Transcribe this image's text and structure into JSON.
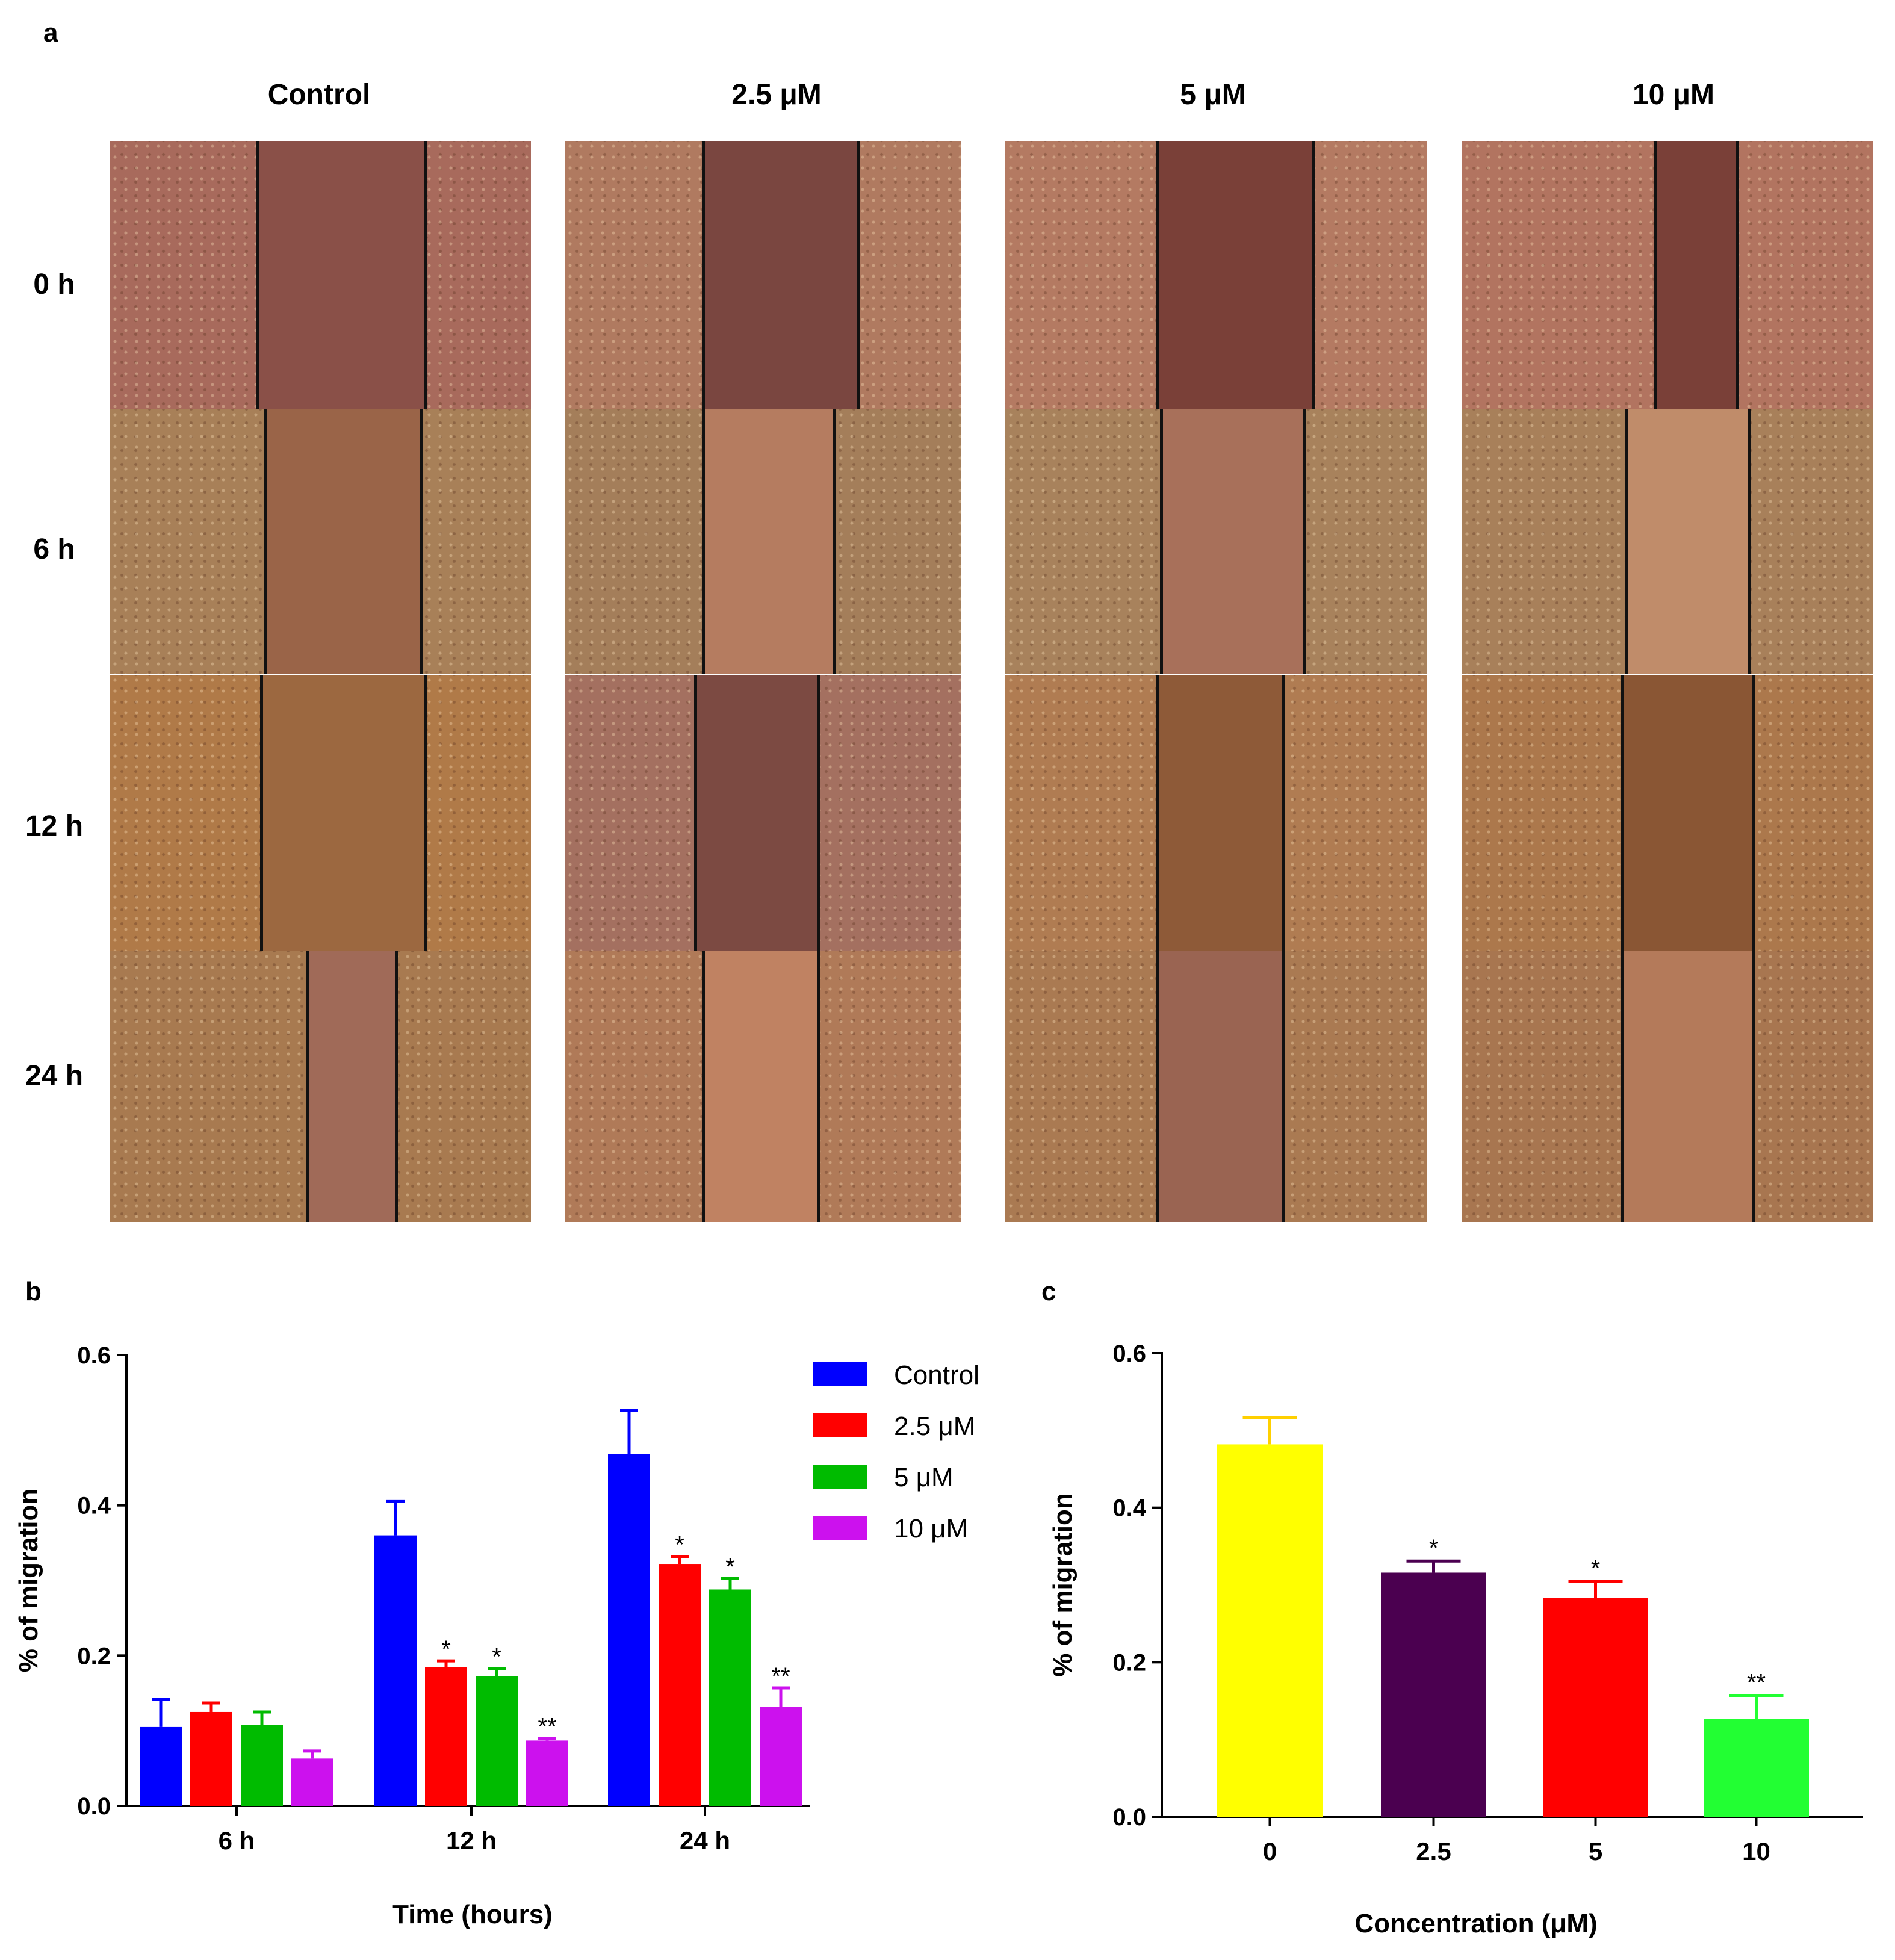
{
  "panel_a": {
    "letter": "a",
    "columns": [
      "Control",
      "2.5 μM",
      "5 μM",
      "10 μM"
    ],
    "rows": [
      "0 h",
      "6 h",
      "12 h",
      "24 h"
    ]
  },
  "chart_data": [
    {
      "panel": "b",
      "type": "bar",
      "xlabel": "Time (hours)",
      "ylabel": "% of migration",
      "categories": [
        "6 h",
        "12 h",
        "24 h"
      ],
      "ylim": [
        0.0,
        0.6
      ],
      "yticks": [
        "0.0",
        "0.2",
        "0.4",
        "0.6"
      ],
      "series": [
        {
          "name": "Control",
          "color": "#0000ff",
          "values": [
            0.105,
            0.36,
            0.468
          ],
          "errors": [
            0.037,
            0.045,
            0.058
          ],
          "sig": [
            "",
            "",
            ""
          ]
        },
        {
          "name": "2.5 μM",
          "color": "#ff0000",
          "values": [
            0.125,
            0.185,
            0.322
          ],
          "errors": [
            0.012,
            0.008,
            0.01
          ],
          "sig": [
            "",
            "*",
            "*"
          ]
        },
        {
          "name": "5 μM",
          "color": "#00bb00",
          "values": [
            0.108,
            0.173,
            0.288
          ],
          "errors": [
            0.017,
            0.01,
            0.015
          ],
          "sig": [
            "",
            "*",
            "*"
          ]
        },
        {
          "name": "10 μM",
          "color": "#cc11ee",
          "values": [
            0.063,
            0.087,
            0.132
          ],
          "errors": [
            0.01,
            0.003,
            0.025
          ],
          "sig": [
            "",
            "**",
            "**"
          ]
        }
      ],
      "legend": "top-right"
    },
    {
      "panel": "c",
      "type": "bar",
      "xlabel": "Concentration (μM)",
      "ylabel": "% of migration",
      "categories": [
        "0",
        "2.5",
        "5",
        "10"
      ],
      "ylim": [
        0.0,
        0.6
      ],
      "yticks": [
        "0.0",
        "0.2",
        "0.4",
        "0.6"
      ],
      "values": [
        0.482,
        0.316,
        0.283,
        0.127
      ],
      "errors": [
        0.035,
        0.015,
        0.022,
        0.03
      ],
      "colors": [
        "#ffff00",
        "#4b0050",
        "#ff0000",
        "#22ff33"
      ],
      "sig": [
        "",
        "*",
        "*",
        "**"
      ]
    }
  ]
}
